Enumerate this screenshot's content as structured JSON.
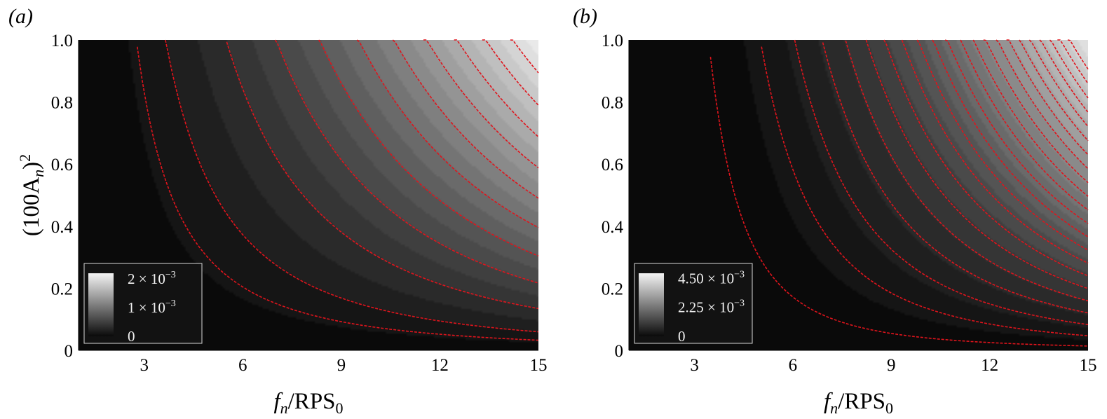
{
  "chart_data": [
    {
      "panel_label": "(a)",
      "type": "heatmap",
      "xlabel": {
        "main": "f",
        "sub": "n",
        "rest": "/RPS",
        "sub2": "0"
      },
      "ylabel": {
        "pre": "(100A",
        "sub": "n",
        "post": ")",
        "sup": "2"
      },
      "xlim": [
        1,
        15
      ],
      "ylim": [
        0,
        1
      ],
      "xticks": [
        "3",
        "6",
        "9",
        "12",
        "15"
      ],
      "yticks": [
        "0",
        "0.2",
        "0.4",
        "0.6",
        "0.8",
        "1.0"
      ],
      "colorbar": {
        "min": 0,
        "max": 0.0022,
        "labels": [
          {
            "mant": "2 × 10",
            "exp": "−3",
            "value": 0.002
          },
          {
            "mant": "1 × 10",
            "exp": "−3",
            "value": 0.001
          },
          {
            "mant": "0",
            "exp": "",
            "value": 0
          }
        ]
      },
      "contour_levels": [
        0.00012,
        0.0002,
        0.0004,
        0.0006,
        0.0008,
        0.001,
        0.0012,
        0.0014,
        0.0016,
        0.0018,
        0.002
      ],
      "field": {
        "scale": 0.0022,
        "x_exp": 1.15,
        "y_exp": 0.85,
        "x_weight": 0.55
      },
      "contour_color": "#e0141c",
      "colormap": [
        "#0a0a0a",
        "#f4f4f4"
      ]
    },
    {
      "panel_label": "(b)",
      "type": "heatmap",
      "xlabel": {
        "main": "f",
        "sub": "n",
        "rest": "/RPS",
        "sub2": "0"
      },
      "xlim": [
        1,
        15
      ],
      "ylim": [
        0,
        1
      ],
      "xticks": [
        "3",
        "6",
        "9",
        "12",
        "15"
      ],
      "yticks": [
        "0",
        "0.2",
        "0.4",
        "0.6",
        "0.8",
        "1.0"
      ],
      "colorbar": {
        "min": 0,
        "max": 0.0049,
        "labels": [
          {
            "mant": "4.50 × 10",
            "exp": "−3",
            "value": 0.0045
          },
          {
            "mant": "2.25 × 10",
            "exp": "−3",
            "value": 0.00225
          },
          {
            "mant": "0",
            "exp": "",
            "value": 0
          }
        ]
      },
      "contour_levels": [
        0.0001,
        0.0003,
        0.0005,
        0.0007,
        0.0009,
        0.0011,
        0.0013,
        0.0015,
        0.0017,
        0.0019,
        0.0021,
        0.0023,
        0.0025,
        0.0027,
        0.0029,
        0.0031,
        0.0033,
        0.0035,
        0.0037,
        0.0039,
        0.0041,
        0.0043
      ],
      "field": {
        "scale": 0.0047,
        "x_exp": 1.1,
        "y_exp": 0.9,
        "x_weight": 0.0
      },
      "contour_color": "#e0141c",
      "colormap": [
        "#0a0a0a",
        "#f4f4f4"
      ]
    }
  ]
}
